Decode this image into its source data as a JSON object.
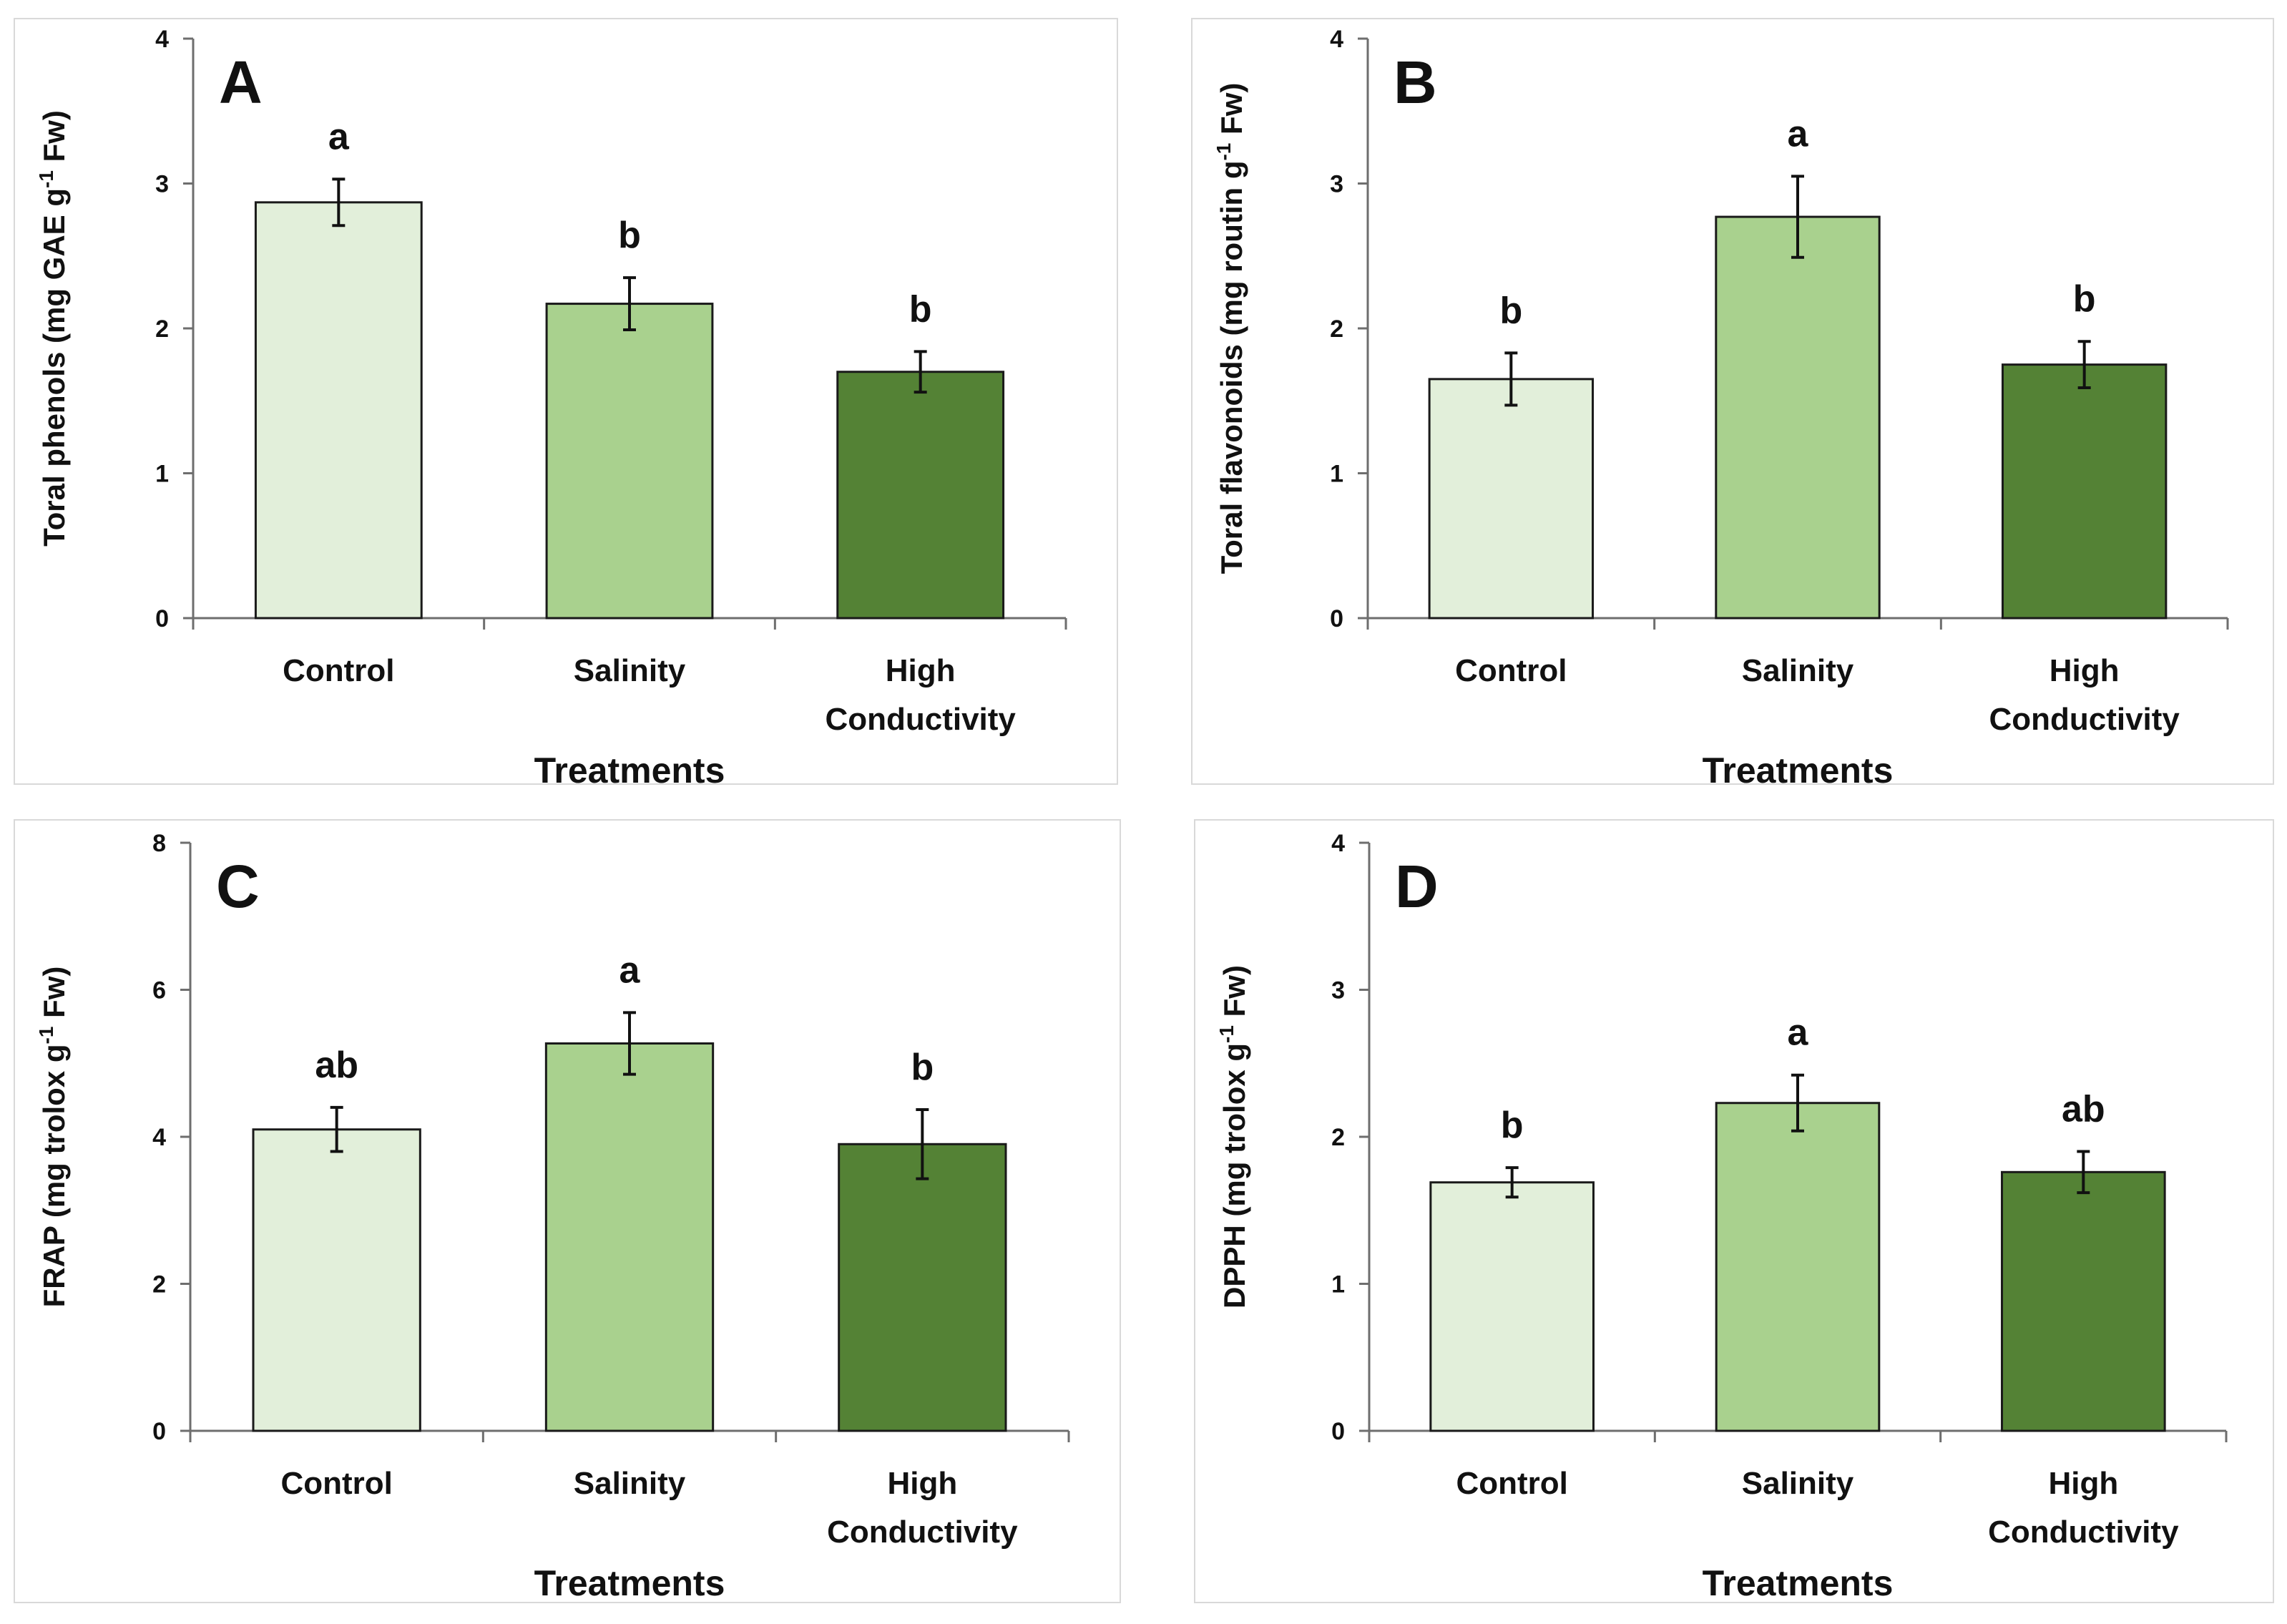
{
  "chart_data": [
    {
      "panel": "A",
      "type": "bar",
      "categories": [
        "Control",
        "Salinity",
        "High Conductivity"
      ],
      "values": [
        2.87,
        2.17,
        1.7
      ],
      "errors": [
        0.16,
        0.18,
        0.14
      ],
      "significance": [
        "a",
        "b",
        "b"
      ],
      "ylabel": "Toral phenols (mg GAE g-1 Fw)",
      "ylabel_parts": {
        "pre": "Toral phenols (mg GAE g",
        "sup": "-1",
        "post": " Fw)"
      },
      "xlabel": "Treatments",
      "ylim": [
        0,
        4
      ],
      "yticks": [
        0,
        1,
        2,
        3,
        4
      ],
      "colors": [
        "#e2efda",
        "#a9d18e",
        "#548235"
      ],
      "grid": false
    },
    {
      "panel": "B",
      "type": "bar",
      "categories": [
        "Control",
        "Salinity",
        "High Conductivity"
      ],
      "values": [
        1.65,
        2.77,
        1.75
      ],
      "errors": [
        0.18,
        0.28,
        0.16
      ],
      "significance": [
        "b",
        "a",
        "b"
      ],
      "ylabel": "Toral flavonoids (mg routin g-1 Fw)",
      "ylabel_parts": {
        "pre": "Toral flavonoids (mg routin g",
        "sup": "-1",
        "post": " Fw)"
      },
      "xlabel": "Treatments",
      "ylim": [
        0,
        4
      ],
      "yticks": [
        0,
        1,
        2,
        3,
        4
      ],
      "colors": [
        "#e2efda",
        "#a9d18e",
        "#548235"
      ],
      "grid": false
    },
    {
      "panel": "C",
      "type": "bar",
      "categories": [
        "Control",
        "Salinity",
        "High Conductivity"
      ],
      "values": [
        4.1,
        5.27,
        3.9
      ],
      "errors": [
        0.3,
        0.42,
        0.47
      ],
      "significance": [
        "ab",
        "a",
        "b"
      ],
      "ylabel": "FRAP (mg trolox g-1 Fw)",
      "ylabel_parts": {
        "pre": "FRAP (mg trolox g",
        "sup": "-1",
        "post": " Fw)"
      },
      "xlabel": "Treatments",
      "ylim": [
        0,
        8
      ],
      "yticks": [
        0,
        2,
        4,
        6,
        8
      ],
      "colors": [
        "#e2efda",
        "#a9d18e",
        "#548235"
      ],
      "grid": false
    },
    {
      "panel": "D",
      "type": "bar",
      "categories": [
        "Control",
        "Salinity",
        "High Conductivity"
      ],
      "values": [
        1.69,
        2.23,
        1.76
      ],
      "errors": [
        0.1,
        0.19,
        0.14
      ],
      "significance": [
        "b",
        "a",
        "ab"
      ],
      "ylabel": "DPPH (mg trolox g-1 Fw)",
      "ylabel_parts": {
        "pre": "DPPH (mg trolox g",
        "sup": "-1",
        "post": " Fw)"
      },
      "xlabel": "Treatments",
      "ylim": [
        0,
        4
      ],
      "yticks": [
        0,
        1,
        2,
        3,
        4
      ],
      "colors": [
        "#e2efda",
        "#a9d18e",
        "#548235"
      ],
      "grid": false
    }
  ]
}
